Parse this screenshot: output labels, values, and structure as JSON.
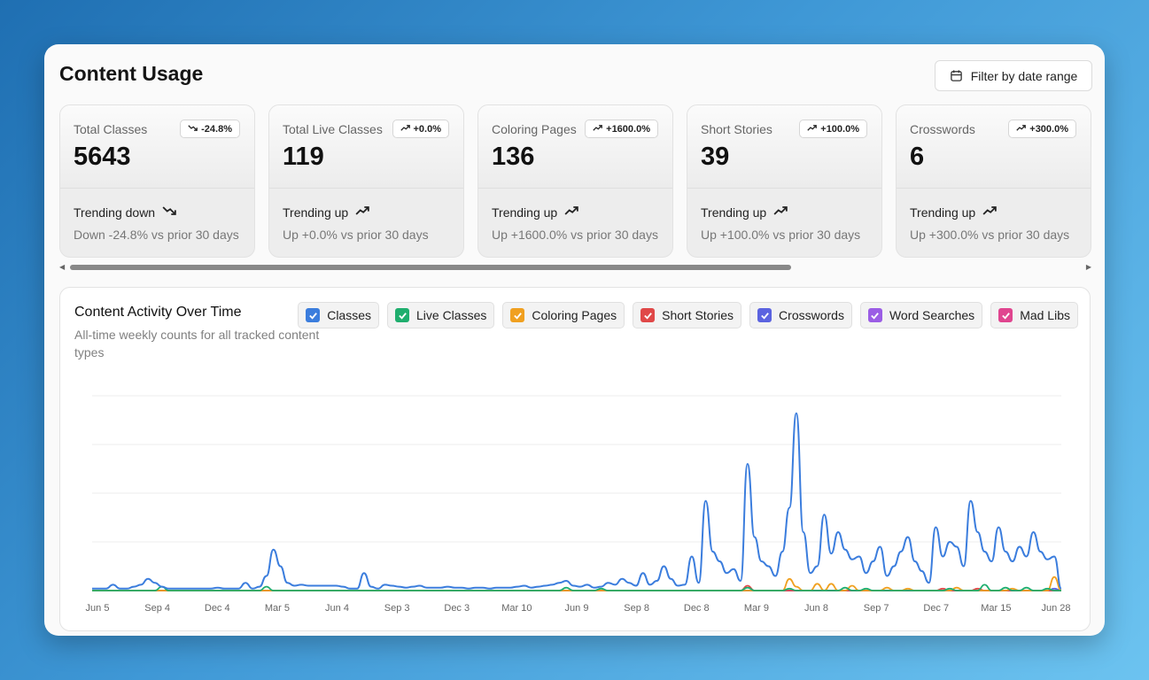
{
  "header": {
    "title": "Content Usage",
    "filter_label": "Filter by date range"
  },
  "cards": [
    {
      "label": "Total Classes",
      "value": "5643",
      "badge": "-24.8%",
      "direction": "down",
      "trend": "Trending down",
      "sub": "Down -24.8% vs prior 30 days"
    },
    {
      "label": "Total Live Classes",
      "value": "119",
      "badge": "+0.0%",
      "direction": "up",
      "trend": "Trending up",
      "sub": "Up +0.0% vs prior 30 days"
    },
    {
      "label": "Coloring Pages",
      "value": "136",
      "badge": "+1600.0%",
      "direction": "up",
      "trend": "Trending up",
      "sub": "Up +1600.0% vs prior 30 days"
    },
    {
      "label": "Short Stories",
      "value": "39",
      "badge": "+100.0%",
      "direction": "up",
      "trend": "Trending up",
      "sub": "Up +100.0% vs prior 30 days"
    },
    {
      "label": "Crosswords",
      "value": "6",
      "badge": "+300.0%",
      "direction": "up",
      "trend": "Trending up",
      "sub": "Up +300.0% vs prior 30 days"
    }
  ],
  "chart": {
    "title": "Content Activity Over Time",
    "subtitle": "All-time weekly counts for all tracked content types"
  },
  "legend": [
    {
      "label": "Classes",
      "color": "#3b7ddd"
    },
    {
      "label": "Live Classes",
      "color": "#1fae6e"
    },
    {
      "label": "Coloring Pages",
      "color": "#f0a020"
    },
    {
      "label": "Short Stories",
      "color": "#e04848"
    },
    {
      "label": "Crosswords",
      "color": "#5b63e0"
    },
    {
      "label": "Word Searches",
      "color": "#9b5de5"
    },
    {
      "label": "Mad Libs",
      "color": "#e0458f"
    }
  ],
  "chart_data": {
    "type": "line",
    "x_tick_labels": [
      "Jun 5",
      "Sep 4",
      "Dec 4",
      "Mar 5",
      "Jun 4",
      "Sep 3",
      "Dec 3",
      "Mar 10",
      "Jun 9",
      "Sep 8",
      "Dec 8",
      "Mar 9",
      "Jun 8",
      "Sep 7",
      "Dec 7",
      "Mar 15",
      "Jun 28"
    ],
    "y_gridlines": 5,
    "ylim": [
      0,
      200
    ],
    "series": [
      {
        "name": "Classes",
        "color": "#3b7ddd",
        "values": [
          2,
          2,
          2,
          6,
          2,
          2,
          4,
          6,
          12,
          8,
          4,
          2,
          2,
          2,
          2,
          2,
          2,
          2,
          3,
          2,
          2,
          2,
          8,
          2,
          4,
          15,
          42,
          25,
          8,
          5,
          6,
          5,
          5,
          5,
          5,
          5,
          4,
          2,
          2,
          18,
          4,
          2,
          6,
          5,
          4,
          3,
          4,
          5,
          3,
          3,
          3,
          4,
          3,
          3,
          2,
          3,
          3,
          2,
          3,
          3,
          3,
          4,
          5,
          3,
          4,
          5,
          6,
          8,
          10,
          5,
          4,
          6,
          3,
          4,
          8,
          6,
          12,
          8,
          5,
          18,
          6,
          10,
          25,
          12,
          5,
          6,
          35,
          8,
          92,
          40,
          30,
          18,
          22,
          10,
          130,
          55,
          30,
          25,
          15,
          40,
          85,
          182,
          60,
          18,
          25,
          78,
          38,
          60,
          42,
          32,
          35,
          18,
          30,
          45,
          15,
          25,
          40,
          55,
          30,
          20,
          8,
          65,
          35,
          50,
          45,
          25,
          92,
          60,
          40,
          30,
          65,
          40,
          30,
          45,
          35,
          60,
          40,
          32,
          35,
          2
        ]
      },
      {
        "name": "Live Classes",
        "color": "#1fae6e",
        "values": [
          0,
          0,
          0,
          0,
          0,
          0,
          0,
          0,
          0,
          0,
          4,
          0,
          0,
          0,
          0,
          0,
          0,
          0,
          0,
          0,
          0,
          0,
          0,
          0,
          0,
          4,
          0,
          0,
          0,
          0,
          0,
          0,
          0,
          0,
          0,
          0,
          0,
          0,
          0,
          0,
          0,
          0,
          0,
          0,
          0,
          0,
          0,
          0,
          0,
          0,
          0,
          0,
          0,
          0,
          0,
          0,
          0,
          0,
          0,
          0,
          0,
          0,
          0,
          0,
          0,
          0,
          0,
          0,
          3,
          0,
          0,
          0,
          0,
          2,
          0,
          0,
          0,
          0,
          0,
          0,
          0,
          0,
          0,
          0,
          0,
          0,
          0,
          0,
          0,
          0,
          0,
          0,
          0,
          0,
          3,
          0,
          0,
          0,
          0,
          0,
          2,
          0,
          0,
          0,
          0,
          0,
          0,
          0,
          3,
          0,
          0,
          2,
          0,
          0,
          0,
          0,
          0,
          0,
          0,
          0,
          0,
          0,
          0,
          2,
          0,
          0,
          0,
          0,
          6,
          0,
          0,
          3,
          0,
          0,
          3,
          0,
          0,
          2,
          0,
          0
        ]
      },
      {
        "name": "Coloring Pages",
        "color": "#f0a020",
        "values": [
          0,
          0,
          0,
          0,
          0,
          0,
          0,
          0,
          0,
          0,
          0,
          0,
          0,
          0,
          0,
          0,
          0,
          0,
          0,
          0,
          0,
          0,
          0,
          0,
          0,
          0,
          0,
          0,
          0,
          0,
          0,
          0,
          0,
          0,
          0,
          0,
          0,
          0,
          0,
          0,
          0,
          0,
          0,
          0,
          0,
          0,
          0,
          0,
          0,
          0,
          0,
          0,
          0,
          0,
          0,
          0,
          0,
          0,
          0,
          0,
          0,
          0,
          0,
          0,
          0,
          0,
          0,
          0,
          0,
          0,
          0,
          0,
          0,
          0,
          0,
          0,
          0,
          0,
          0,
          0,
          0,
          0,
          0,
          0,
          0,
          0,
          0,
          0,
          0,
          0,
          0,
          0,
          0,
          0,
          0,
          0,
          0,
          0,
          0,
          0,
          12,
          4,
          0,
          0,
          7,
          0,
          7,
          0,
          0,
          5,
          0,
          0,
          0,
          0,
          3,
          0,
          0,
          2,
          0,
          0,
          0,
          0,
          0,
          0,
          3,
          0,
          0,
          0,
          0,
          0,
          0,
          0,
          2,
          0,
          0,
          0,
          0,
          0,
          14,
          0
        ]
      },
      {
        "name": "Short Stories",
        "color": "#e04848",
        "values": [
          0,
          0,
          0,
          0,
          0,
          0,
          0,
          0,
          0,
          0,
          0,
          0,
          0,
          0,
          0,
          0,
          0,
          0,
          0,
          0,
          0,
          0,
          0,
          0,
          0,
          0,
          0,
          0,
          0,
          0,
          0,
          0,
          0,
          0,
          0,
          0,
          0,
          0,
          0,
          0,
          0,
          0,
          0,
          0,
          0,
          0,
          0,
          0,
          0,
          0,
          0,
          0,
          0,
          0,
          0,
          0,
          0,
          0,
          0,
          0,
          0,
          0,
          0,
          0,
          0,
          0,
          0,
          0,
          0,
          0,
          0,
          0,
          0,
          0,
          0,
          0,
          0,
          0,
          0,
          0,
          0,
          0,
          0,
          0,
          0,
          0,
          0,
          0,
          0,
          0,
          0,
          0,
          0,
          0,
          5,
          0,
          0,
          0,
          0,
          0,
          0,
          0,
          0,
          0,
          0,
          0,
          0,
          0,
          0,
          0,
          0,
          0,
          0,
          0,
          0,
          0,
          0,
          0,
          0,
          0,
          0,
          0,
          2,
          0,
          0,
          0,
          0,
          2,
          0,
          0,
          0,
          0,
          0,
          0,
          0,
          0,
          0,
          0,
          0,
          0
        ]
      },
      {
        "name": "Crosswords",
        "color": "#5b63e0",
        "values": [
          0,
          0,
          0,
          0,
          0,
          0,
          0,
          0,
          0,
          0,
          0,
          0,
          0,
          0,
          0,
          0,
          0,
          0,
          0,
          0,
          0,
          0,
          0,
          0,
          0,
          0,
          0,
          0,
          0,
          0,
          0,
          0,
          0,
          0,
          0,
          0,
          0,
          0,
          0,
          0,
          0,
          0,
          0,
          0,
          0,
          0,
          0,
          0,
          0,
          0,
          0,
          0,
          0,
          0,
          0,
          0,
          0,
          0,
          0,
          0,
          0,
          0,
          0,
          0,
          0,
          0,
          0,
          0,
          0,
          0,
          0,
          0,
          0,
          0,
          0,
          0,
          0,
          0,
          0,
          0,
          0,
          0,
          0,
          0,
          0,
          0,
          0,
          0,
          0,
          0,
          0,
          0,
          0,
          0,
          0,
          0,
          0,
          0,
          0,
          0,
          0,
          0,
          0,
          0,
          0,
          0,
          0,
          0,
          0,
          0,
          0,
          0,
          0,
          0,
          0,
          0,
          0,
          0,
          0,
          0,
          0,
          0,
          0,
          0,
          0,
          0,
          0,
          0,
          0,
          0,
          0,
          0,
          0,
          0,
          0,
          0,
          0,
          0,
          2,
          0
        ]
      },
      {
        "name": "Word Searches",
        "color": "#9b5de5",
        "values": [
          0,
          0,
          0,
          0,
          0,
          0,
          0,
          0,
          0,
          0,
          0,
          0,
          0,
          0,
          0,
          0,
          0,
          0,
          0,
          0,
          0,
          0,
          0,
          0,
          0,
          0,
          0,
          0,
          0,
          0,
          0,
          0,
          0,
          0,
          0,
          0,
          0,
          0,
          0,
          0,
          0,
          0,
          0,
          0,
          0,
          0,
          0,
          0,
          0,
          0,
          0,
          0,
          0,
          0,
          0,
          0,
          0,
          0,
          0,
          0,
          0,
          0,
          0,
          0,
          0,
          0,
          0,
          0,
          0,
          0,
          0,
          0,
          0,
          0,
          0,
          0,
          0,
          0,
          0,
          0,
          0,
          0,
          0,
          0,
          0,
          0,
          0,
          0,
          0,
          0,
          0,
          0,
          0,
          0,
          0,
          0,
          0,
          0,
          0,
          0,
          0,
          0,
          0,
          0,
          0,
          0,
          0,
          0,
          0,
          0,
          0,
          0,
          0,
          0,
          0,
          0,
          0,
          0,
          0,
          0,
          0,
          0,
          0,
          0,
          0,
          0,
          0,
          0,
          0,
          0,
          0,
          0,
          0,
          0,
          0,
          0,
          0,
          0,
          0,
          0
        ]
      },
      {
        "name": "Mad Libs",
        "color": "#e0458f",
        "values": [
          0,
          0,
          0,
          0,
          0,
          0,
          0,
          0,
          0,
          0,
          0,
          0,
          0,
          0,
          0,
          0,
          0,
          0,
          0,
          0,
          0,
          0,
          0,
          0,
          0,
          0,
          0,
          0,
          0,
          0,
          0,
          0,
          0,
          0,
          0,
          0,
          0,
          0,
          0,
          0,
          0,
          0,
          0,
          0,
          0,
          0,
          0,
          0,
          0,
          0,
          0,
          0,
          0,
          0,
          0,
          0,
          0,
          0,
          0,
          0,
          0,
          0,
          0,
          0,
          0,
          0,
          0,
          0,
          0,
          0,
          0,
          0,
          0,
          0,
          0,
          0,
          0,
          0,
          0,
          0,
          0,
          0,
          0,
          0,
          0,
          0,
          0,
          0,
          0,
          0,
          0,
          0,
          0,
          0,
          0,
          0,
          0,
          0,
          0,
          0,
          0,
          0,
          0,
          0,
          0,
          0,
          0,
          0,
          0,
          0,
          0,
          0,
          0,
          0,
          0,
          0,
          0,
          0,
          0,
          0,
          0,
          0,
          0,
          0,
          0,
          0,
          0,
          0,
          0,
          0,
          0,
          0,
          0,
          0,
          0,
          0,
          0,
          0,
          0,
          0
        ]
      }
    ]
  }
}
